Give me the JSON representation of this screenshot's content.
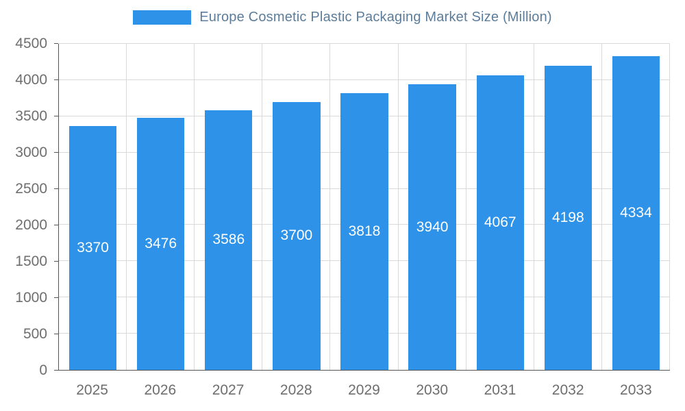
{
  "legend": {
    "swatch_color": "#2e93e8"
  },
  "chart_data": {
    "type": "bar",
    "title": "Europe Cosmetic Plastic Packaging Market Size (Million)",
    "categories": [
      "2025",
      "2026",
      "2027",
      "2028",
      "2029",
      "2030",
      "2031",
      "2032",
      "2033"
    ],
    "values": [
      3370,
      3476,
      3586,
      3700,
      3818,
      3940,
      4067,
      4198,
      4334
    ],
    "xlabel": "",
    "ylabel": "",
    "ylim": [
      0,
      4500
    ],
    "ytick_step": 500,
    "yticks": [
      0,
      500,
      1000,
      1500,
      2000,
      2500,
      3000,
      3500,
      4000,
      4500
    ],
    "bar_color": "#2e93e8",
    "bar_label_color": "#ffffff",
    "grid": true,
    "legend_position": "top"
  }
}
